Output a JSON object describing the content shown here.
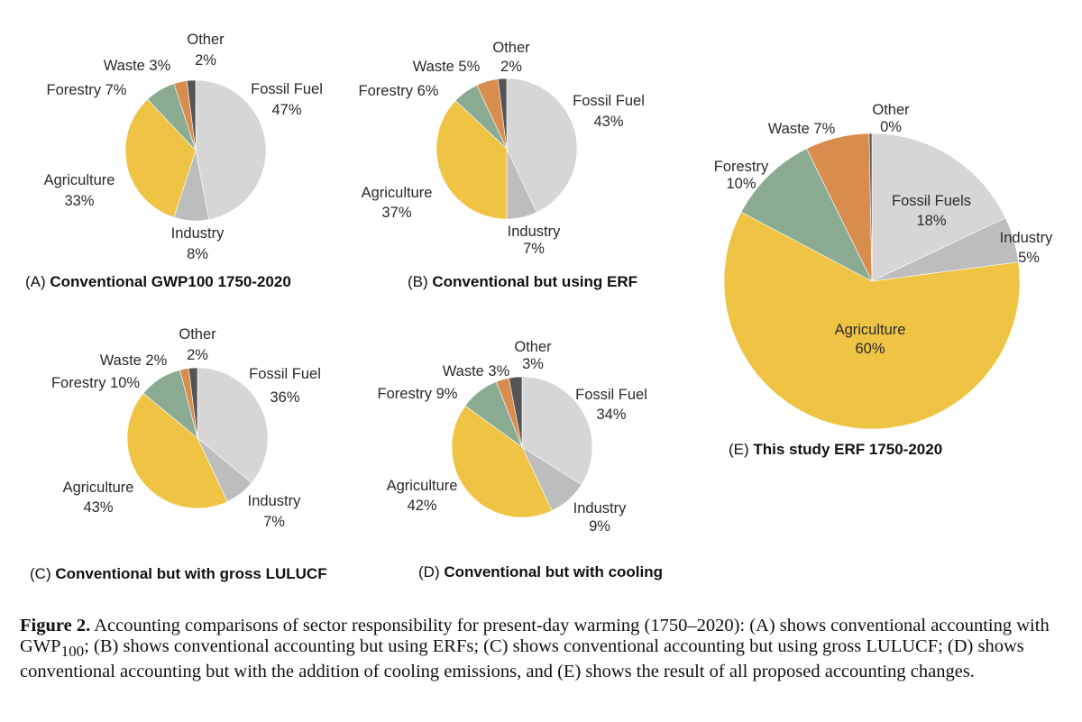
{
  "colors": {
    "Fossil Fuel": "#d6d6d6",
    "Fossil Fuels": "#d6d6d6",
    "Industry": "#bdbdbd",
    "Agriculture": "#efc445",
    "Forestry": "#8aab92",
    "Waste": "#d88d4f",
    "Other": "#555555"
  },
  "chart_data": [
    {
      "id": "A",
      "type": "pie",
      "letter": "(A)",
      "title": "Conventional GWP100 1750-2020",
      "slices": [
        {
          "label": "Fossil Fuel",
          "value": 47,
          "text": "47%"
        },
        {
          "label": "Industry",
          "value": 8,
          "text": "8%"
        },
        {
          "label": "Agriculture",
          "value": 33,
          "text": "33%"
        },
        {
          "label": "Forestry",
          "value": 7,
          "text": "7%"
        },
        {
          "label": "Waste",
          "value": 3,
          "text": "3%"
        },
        {
          "label": "Other",
          "value": 2,
          "text": "2%"
        }
      ]
    },
    {
      "id": "B",
      "type": "pie",
      "letter": "(B)",
      "title": "Conventional but using ERF",
      "slices": [
        {
          "label": "Fossil Fuel",
          "value": 43,
          "text": "43%"
        },
        {
          "label": "Industry",
          "value": 7,
          "text": "7%"
        },
        {
          "label": "Agriculture",
          "value": 37,
          "text": "37%"
        },
        {
          "label": "Forestry",
          "value": 6,
          "text": "6%"
        },
        {
          "label": "Waste",
          "value": 5,
          "text": "5%"
        },
        {
          "label": "Other",
          "value": 2,
          "text": "2%"
        }
      ]
    },
    {
      "id": "C",
      "type": "pie",
      "letter": "(C)",
      "title": "Conventional but with gross LULUCF",
      "slices": [
        {
          "label": "Fossil Fuel",
          "value": 36,
          "text": "36%"
        },
        {
          "label": "Industry",
          "value": 7,
          "text": "7%"
        },
        {
          "label": "Agriculture",
          "value": 43,
          "text": "43%"
        },
        {
          "label": "Forestry",
          "value": 10,
          "text": "10%"
        },
        {
          "label": "Waste",
          "value": 2,
          "text": "2%"
        },
        {
          "label": "Other",
          "value": 2,
          "text": "2%"
        }
      ]
    },
    {
      "id": "D",
      "type": "pie",
      "letter": "(D)",
      "title": "Conventional but with cooling",
      "slices": [
        {
          "label": "Fossil Fuel",
          "value": 34,
          "text": "34%"
        },
        {
          "label": "Industry",
          "value": 9,
          "text": "9%"
        },
        {
          "label": "Agriculture",
          "value": 42,
          "text": "42%"
        },
        {
          "label": "Forestry",
          "value": 9,
          "text": "9%"
        },
        {
          "label": "Waste",
          "value": 3,
          "text": "3%"
        },
        {
          "label": "Other",
          "value": 3,
          "text": "3%"
        }
      ]
    },
    {
      "id": "E",
      "type": "pie",
      "letter": "(E)",
      "title": "This study ERF 1750-2020",
      "slices": [
        {
          "label": "Fossil Fuels",
          "value": 18,
          "text": "18%"
        },
        {
          "label": "Industry",
          "value": 5,
          "text": "5%"
        },
        {
          "label": "Agriculture",
          "value": 60,
          "text": "60%"
        },
        {
          "label": "Forestry",
          "value": 10,
          "text": "10%"
        },
        {
          "label": "Waste",
          "value": 7,
          "text": "7%"
        },
        {
          "label": "Other",
          "value": 0.3,
          "text": "0%"
        }
      ]
    }
  ],
  "caption": {
    "figure": "Figure 2.",
    "text_before_sub": " Accounting comparisons of sector responsibility for present-day warming (1750–2020): (A) shows conventional accounting with GWP",
    "subscript": "100",
    "text_after_sub": "; (B) shows conventional accounting but using ERFs; (C) shows conventional accounting but using gross LULUCF; (D) shows conventional accounting but with the addition of cooling emissions, and (E) shows the result of all proposed accounting changes."
  }
}
